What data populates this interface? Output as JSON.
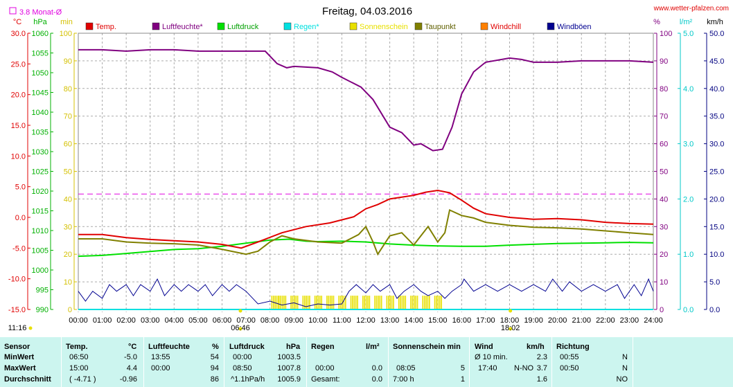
{
  "title": "Freitag, 04.03.2016",
  "source": "www.wetter-pfalzen.com",
  "monthly_avg_label": "3.8 Monat-Ø",
  "axis_units": {
    "temp": "°C",
    "press": "hPa",
    "min": "min",
    "pct": "%",
    "rain": "l/m²",
    "wind": "km/h"
  },
  "axis_ticks": {
    "temp": [
      "30.0",
      "25.0",
      "20.0",
      "15.0",
      "10.0",
      "5.0",
      "0.0",
      "-5.0",
      "-10.0",
      "-15.0"
    ],
    "press": [
      "1060",
      "1055",
      "1050",
      "1045",
      "1040",
      "1035",
      "1030",
      "1025",
      "1020",
      "1015",
      "1010",
      "1005",
      "1000",
      "995",
      "990"
    ],
    "mins": [
      "100",
      "90",
      "80",
      "70",
      "60",
      "50",
      "40",
      "30",
      "20",
      "10",
      "0"
    ],
    "pct": [
      "100",
      "90",
      "80",
      "70",
      "60",
      "50",
      "40",
      "30",
      "20",
      "10",
      "0"
    ],
    "rain": [
      "5.0",
      "4.0",
      "3.0",
      "2.0",
      "1.0",
      "0.0"
    ],
    "wind": [
      "50.0",
      "45.0",
      "40.0",
      "35.0",
      "30.0",
      "25.0",
      "20.0",
      "15.0",
      "10.0",
      "5.0",
      "0.0"
    ],
    "hours": [
      "00:00",
      "01:00",
      "02:00",
      "03:00",
      "04:00",
      "05:00",
      "06:00",
      "07:00",
      "08:00",
      "09:00",
      "10:00",
      "11:00",
      "12:00",
      "13:00",
      "14:00",
      "15:00",
      "16:00",
      "17:00",
      "18:00",
      "19:00",
      "20:00",
      "21:00",
      "22:00",
      "23:00",
      "24:00"
    ]
  },
  "sun_markers": {
    "sunrise": "06:46",
    "sunset": "18:02",
    "daylength": "11:16"
  },
  "colors": {
    "temp": "#e00000",
    "humidity": "#800080",
    "pressure": "#00e000",
    "rain": "#00e0e0",
    "sun": "#e8e000",
    "dewpoint": "#808000",
    "windchill": "#ff8000",
    "gust": "#000090",
    "axis_temp": "#e00000",
    "axis_press": "#00b000",
    "axis_min": "#d4c000",
    "axis_pct": "#800080",
    "axis_rain": "#00c8c8",
    "axis_wind": "#000080",
    "monthly_avg": "#e000e0",
    "grid": "#aaaaaa",
    "table_bg": "#ccf5ef"
  },
  "chart_data": {
    "type": "line",
    "title": "Freitag, 04.03.2016",
    "x_unit": "hour of day",
    "xlim": [
      0,
      24
    ],
    "reference_lines": [
      {
        "name": "3.8 Monat-Ø",
        "axis": "temp",
        "value": 3.8
      }
    ],
    "series": [
      {
        "name": "Temp.",
        "axis": "temp",
        "ylim": [
          -15,
          30
        ],
        "points": [
          [
            0,
            -2.8
          ],
          [
            1,
            -2.8
          ],
          [
            2,
            -3.3
          ],
          [
            3,
            -3.6
          ],
          [
            4,
            -3.8
          ],
          [
            5,
            -4.0
          ],
          [
            6,
            -4.4
          ],
          [
            6.8,
            -5.0
          ],
          [
            7.5,
            -4.0
          ],
          [
            8.5,
            -2.5
          ],
          [
            9.5,
            -1.5
          ],
          [
            10.5,
            -0.9
          ],
          [
            11.5,
            0.1
          ],
          [
            12,
            1.4
          ],
          [
            12.5,
            2.1
          ],
          [
            13,
            3.0
          ],
          [
            14,
            3.6
          ],
          [
            14.5,
            4.1
          ],
          [
            15,
            4.4
          ],
          [
            15.5,
            4.0
          ],
          [
            16,
            2.8
          ],
          [
            16.5,
            1.5
          ],
          [
            17,
            0.6
          ],
          [
            18,
            0.0
          ],
          [
            19,
            -0.3
          ],
          [
            20,
            -0.2
          ],
          [
            21,
            -0.4
          ],
          [
            22,
            -0.8
          ],
          [
            23,
            -1.0
          ],
          [
            24,
            -1.1
          ]
        ]
      },
      {
        "name": "Luftfeuchte*",
        "axis": "pct",
        "ylim": [
          0,
          100
        ],
        "points": [
          [
            0,
            94
          ],
          [
            1,
            94
          ],
          [
            2,
            93.5
          ],
          [
            3,
            94
          ],
          [
            4,
            94
          ],
          [
            5,
            93.5
          ],
          [
            6,
            93.5
          ],
          [
            7,
            93.5
          ],
          [
            7.8,
            93.5
          ],
          [
            8.3,
            89
          ],
          [
            8.7,
            87.5
          ],
          [
            9,
            88
          ],
          [
            10,
            87.5
          ],
          [
            10.6,
            86
          ],
          [
            11,
            84
          ],
          [
            11.8,
            80.5
          ],
          [
            12.3,
            76
          ],
          [
            13,
            66
          ],
          [
            13.5,
            64
          ],
          [
            14,
            59.5
          ],
          [
            14.3,
            60
          ],
          [
            14.8,
            57.5
          ],
          [
            15.2,
            58
          ],
          [
            15.6,
            66
          ],
          [
            16,
            78
          ],
          [
            16.5,
            86
          ],
          [
            17,
            89.5
          ],
          [
            18,
            91
          ],
          [
            18.5,
            90.5
          ],
          [
            19,
            89.5
          ],
          [
            20,
            89.5
          ],
          [
            21,
            90
          ],
          [
            22,
            90
          ],
          [
            23,
            90
          ],
          [
            24,
            89.5
          ]
        ]
      },
      {
        "name": "Luftdruck",
        "axis": "press",
        "ylim": [
          990,
          1060
        ],
        "points": [
          [
            0,
            1003.5
          ],
          [
            1,
            1003.7
          ],
          [
            2,
            1004.2
          ],
          [
            3,
            1004.7
          ],
          [
            4,
            1005.2
          ],
          [
            5,
            1005.4
          ],
          [
            6,
            1006.0
          ],
          [
            7,
            1006.8
          ],
          [
            8,
            1007.6
          ],
          [
            8.8,
            1007.8
          ],
          [
            9.5,
            1007.3
          ],
          [
            10,
            1007.2
          ],
          [
            11,
            1007.3
          ],
          [
            12,
            1007.1
          ],
          [
            13,
            1006.6
          ],
          [
            14,
            1006.3
          ],
          [
            15,
            1006.1
          ],
          [
            16,
            1006.0
          ],
          [
            17,
            1006.0
          ],
          [
            18,
            1006.3
          ],
          [
            19,
            1006.5
          ],
          [
            20,
            1006.7
          ],
          [
            21,
            1006.8
          ],
          [
            22,
            1006.9
          ],
          [
            23,
            1007.0
          ],
          [
            24,
            1006.9
          ]
        ]
      },
      {
        "name": "Regen*",
        "axis": "rain",
        "ylim": [
          0,
          5
        ],
        "points": [
          [
            0,
            0
          ],
          [
            24,
            0
          ]
        ]
      },
      {
        "name": "Sonnenschein",
        "axis": "min",
        "ylim": [
          0,
          100
        ],
        "bars": [
          [
            8.2,
            5
          ],
          [
            8.5,
            5
          ],
          [
            9,
            5
          ],
          [
            9.5,
            5
          ],
          [
            10,
            5
          ],
          [
            10.5,
            5
          ],
          [
            11,
            5
          ],
          [
            11.5,
            5
          ],
          [
            12,
            5
          ],
          [
            12.5,
            5
          ],
          [
            13,
            5
          ],
          [
            13.5,
            5
          ],
          [
            14,
            5
          ],
          [
            14.5,
            5
          ],
          [
            15,
            5
          ]
        ]
      },
      {
        "name": "Taupunkt",
        "axis": "temp",
        "ylim": [
          -15,
          30
        ],
        "points": [
          [
            0,
            -3.5
          ],
          [
            1,
            -3.5
          ],
          [
            2,
            -4.0
          ],
          [
            3,
            -4.2
          ],
          [
            4,
            -4.3
          ],
          [
            5,
            -4.5
          ],
          [
            6,
            -5.2
          ],
          [
            7,
            -6.0
          ],
          [
            7.5,
            -5.5
          ],
          [
            8,
            -4.0
          ],
          [
            8.5,
            -3.0
          ],
          [
            9,
            -3.5
          ],
          [
            10,
            -4.0
          ],
          [
            11,
            -4.2
          ],
          [
            11.7,
            -2.8
          ],
          [
            12,
            -1.5
          ],
          [
            12.3,
            -4.0
          ],
          [
            12.5,
            -6.0
          ],
          [
            13,
            -3.0
          ],
          [
            13.5,
            -2.5
          ],
          [
            14,
            -4.5
          ],
          [
            14.3,
            -3.0
          ],
          [
            14.6,
            -1.5
          ],
          [
            15,
            -4.0
          ],
          [
            15.3,
            -2.5
          ],
          [
            15.5,
            1.2
          ],
          [
            16,
            0.3
          ],
          [
            16.5,
            -0.1
          ],
          [
            17,
            -0.8
          ],
          [
            18,
            -1.3
          ],
          [
            19,
            -1.6
          ],
          [
            20,
            -1.7
          ],
          [
            21,
            -1.9
          ],
          [
            22,
            -2.2
          ],
          [
            23,
            -2.5
          ],
          [
            24,
            -2.8
          ]
        ]
      },
      {
        "name": "Windchill",
        "axis": "temp",
        "ylim": [
          -15,
          30
        ],
        "points": []
      },
      {
        "name": "Windböen",
        "axis": "wind",
        "ylim": [
          0,
          50
        ],
        "points": [
          [
            0,
            3.3
          ],
          [
            0.3,
            1.5
          ],
          [
            0.6,
            3.3
          ],
          [
            1,
            2.0
          ],
          [
            1.3,
            4.5
          ],
          [
            1.6,
            3.3
          ],
          [
            2,
            4.5
          ],
          [
            2.3,
            2.5
          ],
          [
            2.6,
            4.5
          ],
          [
            3,
            3.3
          ],
          [
            3.3,
            5.5
          ],
          [
            3.6,
            2.5
          ],
          [
            4,
            4.5
          ],
          [
            4.3,
            3.3
          ],
          [
            4.6,
            4.5
          ],
          [
            5,
            3.3
          ],
          [
            5.3,
            4.5
          ],
          [
            5.6,
            2.5
          ],
          [
            6,
            4.5
          ],
          [
            6.3,
            3.3
          ],
          [
            6.6,
            4.5
          ],
          [
            7,
            3.3
          ],
          [
            7.5,
            1.0
          ],
          [
            8,
            1.5
          ],
          [
            8.5,
            0.8
          ],
          [
            9,
            1.2
          ],
          [
            9.5,
            0.5
          ],
          [
            10,
            1.0
          ],
          [
            10.5,
            0.8
          ],
          [
            11,
            1.0
          ],
          [
            11.3,
            3.3
          ],
          [
            11.6,
            4.5
          ],
          [
            12,
            3.0
          ],
          [
            12.3,
            4.5
          ],
          [
            12.6,
            3.3
          ],
          [
            13,
            4.5
          ],
          [
            13.3,
            2.0
          ],
          [
            13.6,
            3.3
          ],
          [
            14,
            4.5
          ],
          [
            14.3,
            3.3
          ],
          [
            14.6,
            2.5
          ],
          [
            15,
            3.3
          ],
          [
            15.3,
            2.0
          ],
          [
            15.6,
            3.3
          ],
          [
            16,
            4.5
          ],
          [
            16.1,
            5.5
          ],
          [
            16.5,
            3.3
          ],
          [
            17,
            4.5
          ],
          [
            17.5,
            3.3
          ],
          [
            18,
            4.5
          ],
          [
            18.5,
            3.3
          ],
          [
            19,
            4.5
          ],
          [
            19.5,
            3.3
          ],
          [
            19.8,
            5.5
          ],
          [
            20.2,
            3.3
          ],
          [
            20.5,
            5.0
          ],
          [
            21,
            3.3
          ],
          [
            21.5,
            4.5
          ],
          [
            22,
            3.3
          ],
          [
            22.5,
            4.5
          ],
          [
            22.8,
            2.0
          ],
          [
            23.2,
            4.5
          ],
          [
            23.5,
            2.5
          ],
          [
            23.8,
            5.5
          ],
          [
            24,
            3.3
          ]
        ]
      }
    ]
  },
  "table": {
    "headers": {
      "sensor": "Sensor",
      "temp": "Temp.",
      "temp_unit": "°C",
      "hum": "Luftfeuchte",
      "hum_unit": "%",
      "press": "Luftdruck",
      "press_unit": "hPa",
      "rain": "Regen",
      "rain_unit": "l/m²",
      "sun": "Sonnenschein min",
      "wind": "Wind",
      "wind_unit": "km/h",
      "dir": "Richtung"
    },
    "rows": [
      {
        "label": "MinWert",
        "temp_time": "06:50",
        "temp_val": "-5.0",
        "hum_time": "13:55",
        "hum_val": "54",
        "press_time": "00:00",
        "press_val": "1003.5",
        "rain_time": "",
        "rain_val": "",
        "sun_time": "",
        "sun_val": "",
        "wind_time": "Ø 10 min.",
        "wind_dir": "",
        "wind_val": "2.3",
        "dir_time": "00:55",
        "dir_val": "N"
      },
      {
        "label": "MaxWert",
        "temp_time": "15:00",
        "temp_val": "4.4",
        "hum_time": "00:00",
        "hum_val": "94",
        "press_time": "08:50",
        "press_val": "1007.8",
        "rain_time": "00:00",
        "rain_val": "0.0",
        "sun_time": "08:05",
        "sun_val": "5",
        "wind_time": "17:40",
        "wind_dir": "N-NO",
        "wind_val": "3.7",
        "dir_time": "00:50",
        "dir_val": "N"
      },
      {
        "label": "Durchschnitt",
        "temp_time": "( -4.71 )",
        "temp_val": "-0.96",
        "hum_time": "",
        "hum_val": "86",
        "press_time": "^1.1hPa/h",
        "press_val": "1005.9",
        "rain_time": "Gesamt:",
        "rain_val": "0.0",
        "sun_time": "7:00 h",
        "sun_val": "1",
        "wind_time": "",
        "wind_dir": "",
        "wind_val": "1.6",
        "dir_time": "",
        "dir_val": "NO"
      }
    ]
  }
}
